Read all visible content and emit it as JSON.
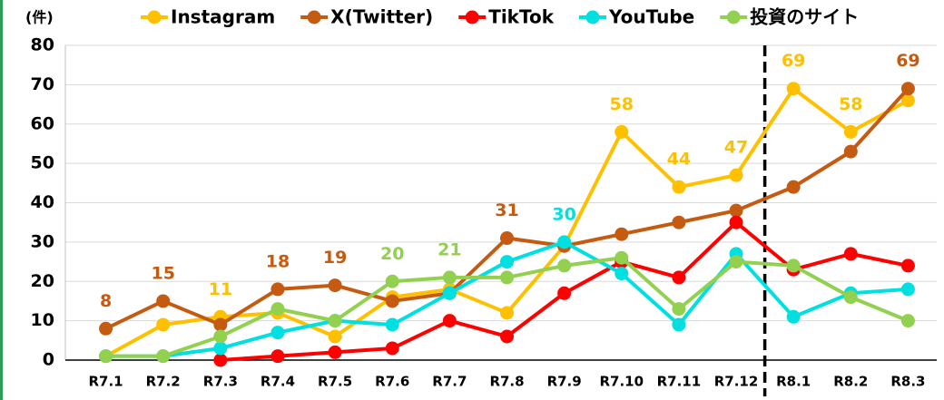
{
  "chart_data": {
    "type": "line",
    "y_axis_label": "(件)",
    "categories": [
      "R7.1",
      "R7.2",
      "R7.3",
      "R7.4",
      "R7.5",
      "R7.6",
      "R7.7",
      "R7.8",
      "R7.9",
      "R7.10",
      "R7.11",
      "R7.12",
      "R8.1",
      "R8.2",
      "R8.3"
    ],
    "series": [
      {
        "name": "Instagram",
        "color": "#ffc000",
        "values": [
          1,
          9,
          11,
          12,
          6,
          16,
          18,
          12,
          29,
          58,
          44,
          47,
          69,
          58,
          66
        ],
        "value_labels": [
          null,
          null,
          "11",
          null,
          null,
          null,
          null,
          null,
          null,
          "58",
          "44",
          "47",
          "69",
          "58",
          null
        ]
      },
      {
        "name": "X(Twitter)",
        "color": "#c55a11",
        "values": [
          8,
          15,
          9,
          18,
          19,
          15,
          17,
          31,
          29,
          32,
          35,
          38,
          44,
          53,
          69
        ],
        "value_labels": [
          "8",
          "15",
          null,
          "18",
          "19",
          null,
          null,
          "31",
          null,
          null,
          null,
          null,
          null,
          null,
          "69"
        ]
      },
      {
        "name": "TikTok",
        "color": "#ff0000",
        "values": [
          null,
          null,
          0,
          1,
          2,
          3,
          10,
          6,
          17,
          25,
          21,
          35,
          23,
          27,
          24
        ],
        "value_labels": [
          null,
          null,
          null,
          null,
          null,
          null,
          null,
          null,
          null,
          null,
          null,
          null,
          null,
          null,
          null
        ]
      },
      {
        "name": "YouTube",
        "color": "#00e0e0",
        "values": [
          1,
          1,
          3,
          7,
          10,
          9,
          17,
          25,
          30,
          22,
          9,
          27,
          11,
          17,
          18
        ],
        "value_labels": [
          null,
          null,
          null,
          null,
          null,
          null,
          null,
          null,
          "30",
          null,
          null,
          null,
          null,
          null,
          null
        ]
      },
      {
        "name": "投資のサイト",
        "color": "#92d050",
        "values": [
          1,
          1,
          6,
          13,
          10,
          20,
          21,
          21,
          24,
          26,
          13,
          25,
          24,
          16,
          10
        ],
        "value_labels": [
          null,
          null,
          null,
          null,
          null,
          "20",
          "21",
          null,
          null,
          null,
          null,
          null,
          null,
          null,
          null
        ]
      }
    ],
    "ylim": [
      0,
      80
    ],
    "yticks": [
      0,
      10,
      20,
      30,
      40,
      50,
      60,
      70,
      80
    ],
    "grid": true,
    "legend": "top"
  }
}
